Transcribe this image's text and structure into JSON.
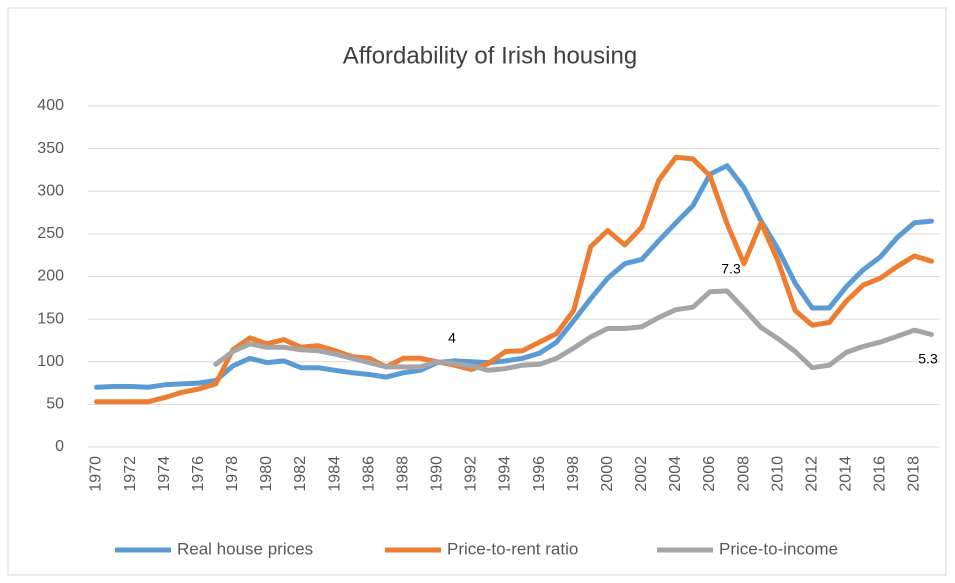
{
  "chart_data": {
    "type": "line",
    "title": "Affordability of Irish housing",
    "categories": [
      "1970",
      null,
      "1972",
      null,
      "1974",
      null,
      "1976",
      null,
      "1978",
      null,
      "1980",
      null,
      "1982",
      null,
      "1984",
      null,
      "1986",
      null,
      "1988",
      null,
      "1990",
      null,
      "1992",
      null,
      "1994",
      null,
      "1996",
      null,
      "1998",
      null,
      "2000",
      null,
      "2002",
      null,
      "2004",
      null,
      "2006",
      null,
      "2008",
      null,
      "2010",
      null,
      "2012",
      null,
      "2014",
      null,
      "2016",
      null,
      "2018",
      null
    ],
    "series": [
      {
        "name": "Real house prices",
        "color": "#5b9bd5",
        "values": [
          70,
          71,
          71,
          70,
          73,
          74,
          75,
          78,
          95,
          104,
          99,
          101,
          93,
          93,
          90,
          87,
          85,
          82,
          87,
          90,
          99,
          101,
          100,
          99,
          101,
          104,
          110,
          123,
          148,
          174,
          198,
          215,
          220,
          242,
          263,
          283,
          320,
          330,
          304,
          265,
          232,
          192,
          163,
          163,
          188,
          208,
          223,
          246,
          263,
          265
        ]
      },
      {
        "name": "Price-to-rent ratio",
        "color": "#ed7d31",
        "values": [
          53,
          53,
          53,
          53,
          58,
          64,
          68,
          74,
          114,
          128,
          121,
          126,
          117,
          119,
          113,
          106,
          104,
          94,
          104,
          104,
          100,
          96,
          91,
          98,
          112,
          113,
          123,
          133,
          160,
          235,
          254,
          237,
          258,
          313,
          340,
          338,
          318,
          262,
          215,
          263,
          218,
          160,
          143,
          146,
          171,
          190,
          198,
          212,
          224,
          218
        ]
      },
      {
        "name": "Price-to-income",
        "color": "#a5a5a5",
        "values": [
          null,
          null,
          null,
          null,
          null,
          null,
          null,
          97,
          112,
          121,
          117,
          117,
          114,
          113,
          109,
          104,
          99,
          94,
          94,
          94,
          100,
          98,
          95,
          90,
          92,
          96,
          97,
          104,
          116,
          129,
          139,
          139,
          141,
          152,
          161,
          164,
          182,
          183,
          162,
          140,
          127,
          112,
          93,
          96,
          111,
          118,
          123,
          130,
          137,
          132
        ]
      }
    ],
    "annotations": [
      "4",
      "7.3",
      "5.3"
    ],
    "ylim": [
      0,
      400
    ],
    "yticks": [
      0,
      50,
      100,
      150,
      200,
      250,
      300,
      350,
      400
    ],
    "grid": true
  }
}
